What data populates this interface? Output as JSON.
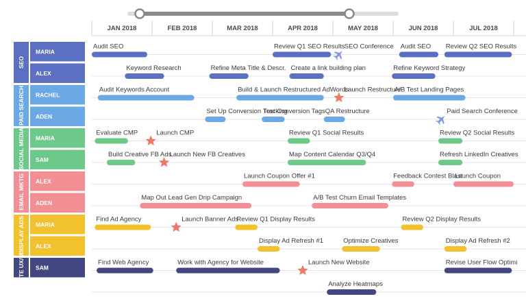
{
  "months": [
    "JAN 2018",
    "FEB 2018",
    "MAR 2018",
    "APR 2018",
    "MAY 2018",
    "JUN 2018",
    "JUL 2018"
  ],
  "scroll_position": 0.85,
  "groups": [
    {
      "label": "SEO",
      "color": "#5b6fc3",
      "people": [
        "MARIA",
        "ALEX"
      ]
    },
    {
      "label": "PAID SEARCH",
      "color": "#6aa9e6",
      "people": [
        "RACHEL",
        "ADEN"
      ]
    },
    {
      "label": "SOCIAL MEDIA",
      "color": "#6cc989",
      "people": [
        "MARIA",
        "SAM"
      ]
    },
    {
      "label": "EMAIL MKTG",
      "color": "#f28f95",
      "people": [
        "ALEX",
        "ADEN"
      ]
    },
    {
      "label": "DISPLAY ADS",
      "color": "#f2c12e",
      "people": [
        "MARIA",
        "ALEX"
      ]
    },
    {
      "label": "SITE UX/UI",
      "color": "#434780",
      "people": [
        "SAM"
      ]
    }
  ],
  "row_colors": [
    "#5b6fc3",
    "#5b6fc3",
    "#6aa9e6",
    "#6aa9e6",
    "#6cc989",
    "#6cc989",
    "#f28f95",
    "#f28f95",
    "#f2c12e",
    "#f2c12e",
    "#434780",
    "#434780"
  ],
  "tasks": [
    {
      "row": 0,
      "start": 0.0,
      "end": 0.92,
      "label": "Audit SEO"
    },
    {
      "row": 0,
      "start": 3.0,
      "end": 3.97,
      "label": "Review Q1 SEO Results"
    },
    {
      "row": 0,
      "start": 5.1,
      "end": 5.75,
      "label": "Audit SEO"
    },
    {
      "row": 0,
      "start": 5.85,
      "end": 6.97,
      "label": "Review Q2 SEO Results"
    },
    {
      "row": 1,
      "start": 0.55,
      "end": 1.2,
      "label": "Keyword Research"
    },
    {
      "row": 1,
      "start": 1.95,
      "end": 2.6,
      "label": "Refine Meta Title & Descr."
    },
    {
      "row": 1,
      "start": 3.28,
      "end": 3.85,
      "label": "Create a link building plan"
    },
    {
      "row": 1,
      "start": 4.98,
      "end": 5.7,
      "label": "Refine Keyword Strategy"
    },
    {
      "row": 2,
      "start": 0.1,
      "end": 1.7,
      "label": "Audit Keywords Account"
    },
    {
      "row": 2,
      "start": 2.4,
      "end": 3.85,
      "label": "Build & Launch Restructured AdWords"
    },
    {
      "row": 2,
      "start": 5.0,
      "end": 6.2,
      "label": "A/B Test Landing Pages"
    },
    {
      "row": 3,
      "start": 1.88,
      "end": 2.22,
      "label": "Set Up Conversion Tracking"
    },
    {
      "row": 3,
      "start": 2.82,
      "end": 3.2,
      "label": "Test Conversion Tags"
    },
    {
      "row": 3,
      "start": 3.85,
      "end": 4.2,
      "label": "QA Restructure"
    },
    {
      "row": 4,
      "start": 0.05,
      "end": 0.6,
      "label": "Evaluate CMP"
    },
    {
      "row": 4,
      "start": 3.25,
      "end": 3.62,
      "label": "Review Q1 Social Results"
    },
    {
      "row": 4,
      "start": 5.75,
      "end": 6.15,
      "label": "Review Q2 Social Results"
    },
    {
      "row": 5,
      "start": 0.25,
      "end": 0.72,
      "label": "Build Creative FB Ads"
    },
    {
      "row": 5,
      "start": 3.25,
      "end": 4.55,
      "label": "Map Content Calendar Q3/Q4"
    },
    {
      "row": 5,
      "start": 5.75,
      "end": 6.15,
      "label": "Refresh LinkedIn Creatives"
    },
    {
      "row": 6,
      "start": 2.5,
      "end": 3.45,
      "label": "Launch Coupon Offer #1"
    },
    {
      "row": 6,
      "start": 4.98,
      "end": 5.35,
      "label": "Feedback Contest Blast"
    },
    {
      "row": 6,
      "start": 6.0,
      "end": 7.0,
      "label": "Launch Coupon"
    },
    {
      "row": 7,
      "start": 0.8,
      "end": 2.65,
      "label": "Map Out Lead Gen Drip Campaign"
    },
    {
      "row": 7,
      "start": 3.65,
      "end": 4.92,
      "label": "A/B Test Churn Email Templates"
    },
    {
      "row": 8,
      "start": 0.05,
      "end": 0.98,
      "label": "Find Ad Agency"
    },
    {
      "row": 8,
      "start": 2.38,
      "end": 2.75,
      "label": "Review Q1 Display Results"
    },
    {
      "row": 8,
      "start": 5.13,
      "end": 5.5,
      "label": "Review Q2 Display Results"
    },
    {
      "row": 9,
      "start": 2.75,
      "end": 3.12,
      "label": "Display Ad Refresh #1"
    },
    {
      "row": 9,
      "start": 4.15,
      "end": 4.78,
      "label": "Optimize Creatives"
    },
    {
      "row": 9,
      "start": 5.85,
      "end": 6.22,
      "label": "Display Ad Refresh #2"
    },
    {
      "row": 10,
      "start": 0.08,
      "end": 1.02,
      "label": "Find Web Agency"
    },
    {
      "row": 10,
      "start": 1.4,
      "end": 3.12,
      "label": "Work with Agency for Website"
    },
    {
      "row": 10,
      "start": 5.85,
      "end": 6.97,
      "label": "Revise User Flow Optimi"
    },
    {
      "row": 11,
      "start": 3.9,
      "end": 4.72,
      "label": "Analyze Heatmaps"
    }
  ],
  "milestones": [
    {
      "row": 0,
      "pos": 4.1,
      "icon": "plane",
      "label": "SEO Conference"
    },
    {
      "row": 2,
      "pos": 4.1,
      "icon": "star",
      "label": "Launch Restructure"
    },
    {
      "row": 3,
      "pos": 5.8,
      "icon": "plane",
      "label": "Paid Search Conference"
    },
    {
      "row": 4,
      "pos": 0.98,
      "icon": "star",
      "label": "Launch CMP"
    },
    {
      "row": 5,
      "pos": 1.2,
      "icon": "star",
      "label": "Launch New FB Creatives"
    },
    {
      "row": 8,
      "pos": 1.4,
      "icon": "star",
      "label": "Launch Banner Ads"
    },
    {
      "row": 10,
      "pos": 3.5,
      "icon": "star",
      "label": "Launch New Website"
    }
  ]
}
